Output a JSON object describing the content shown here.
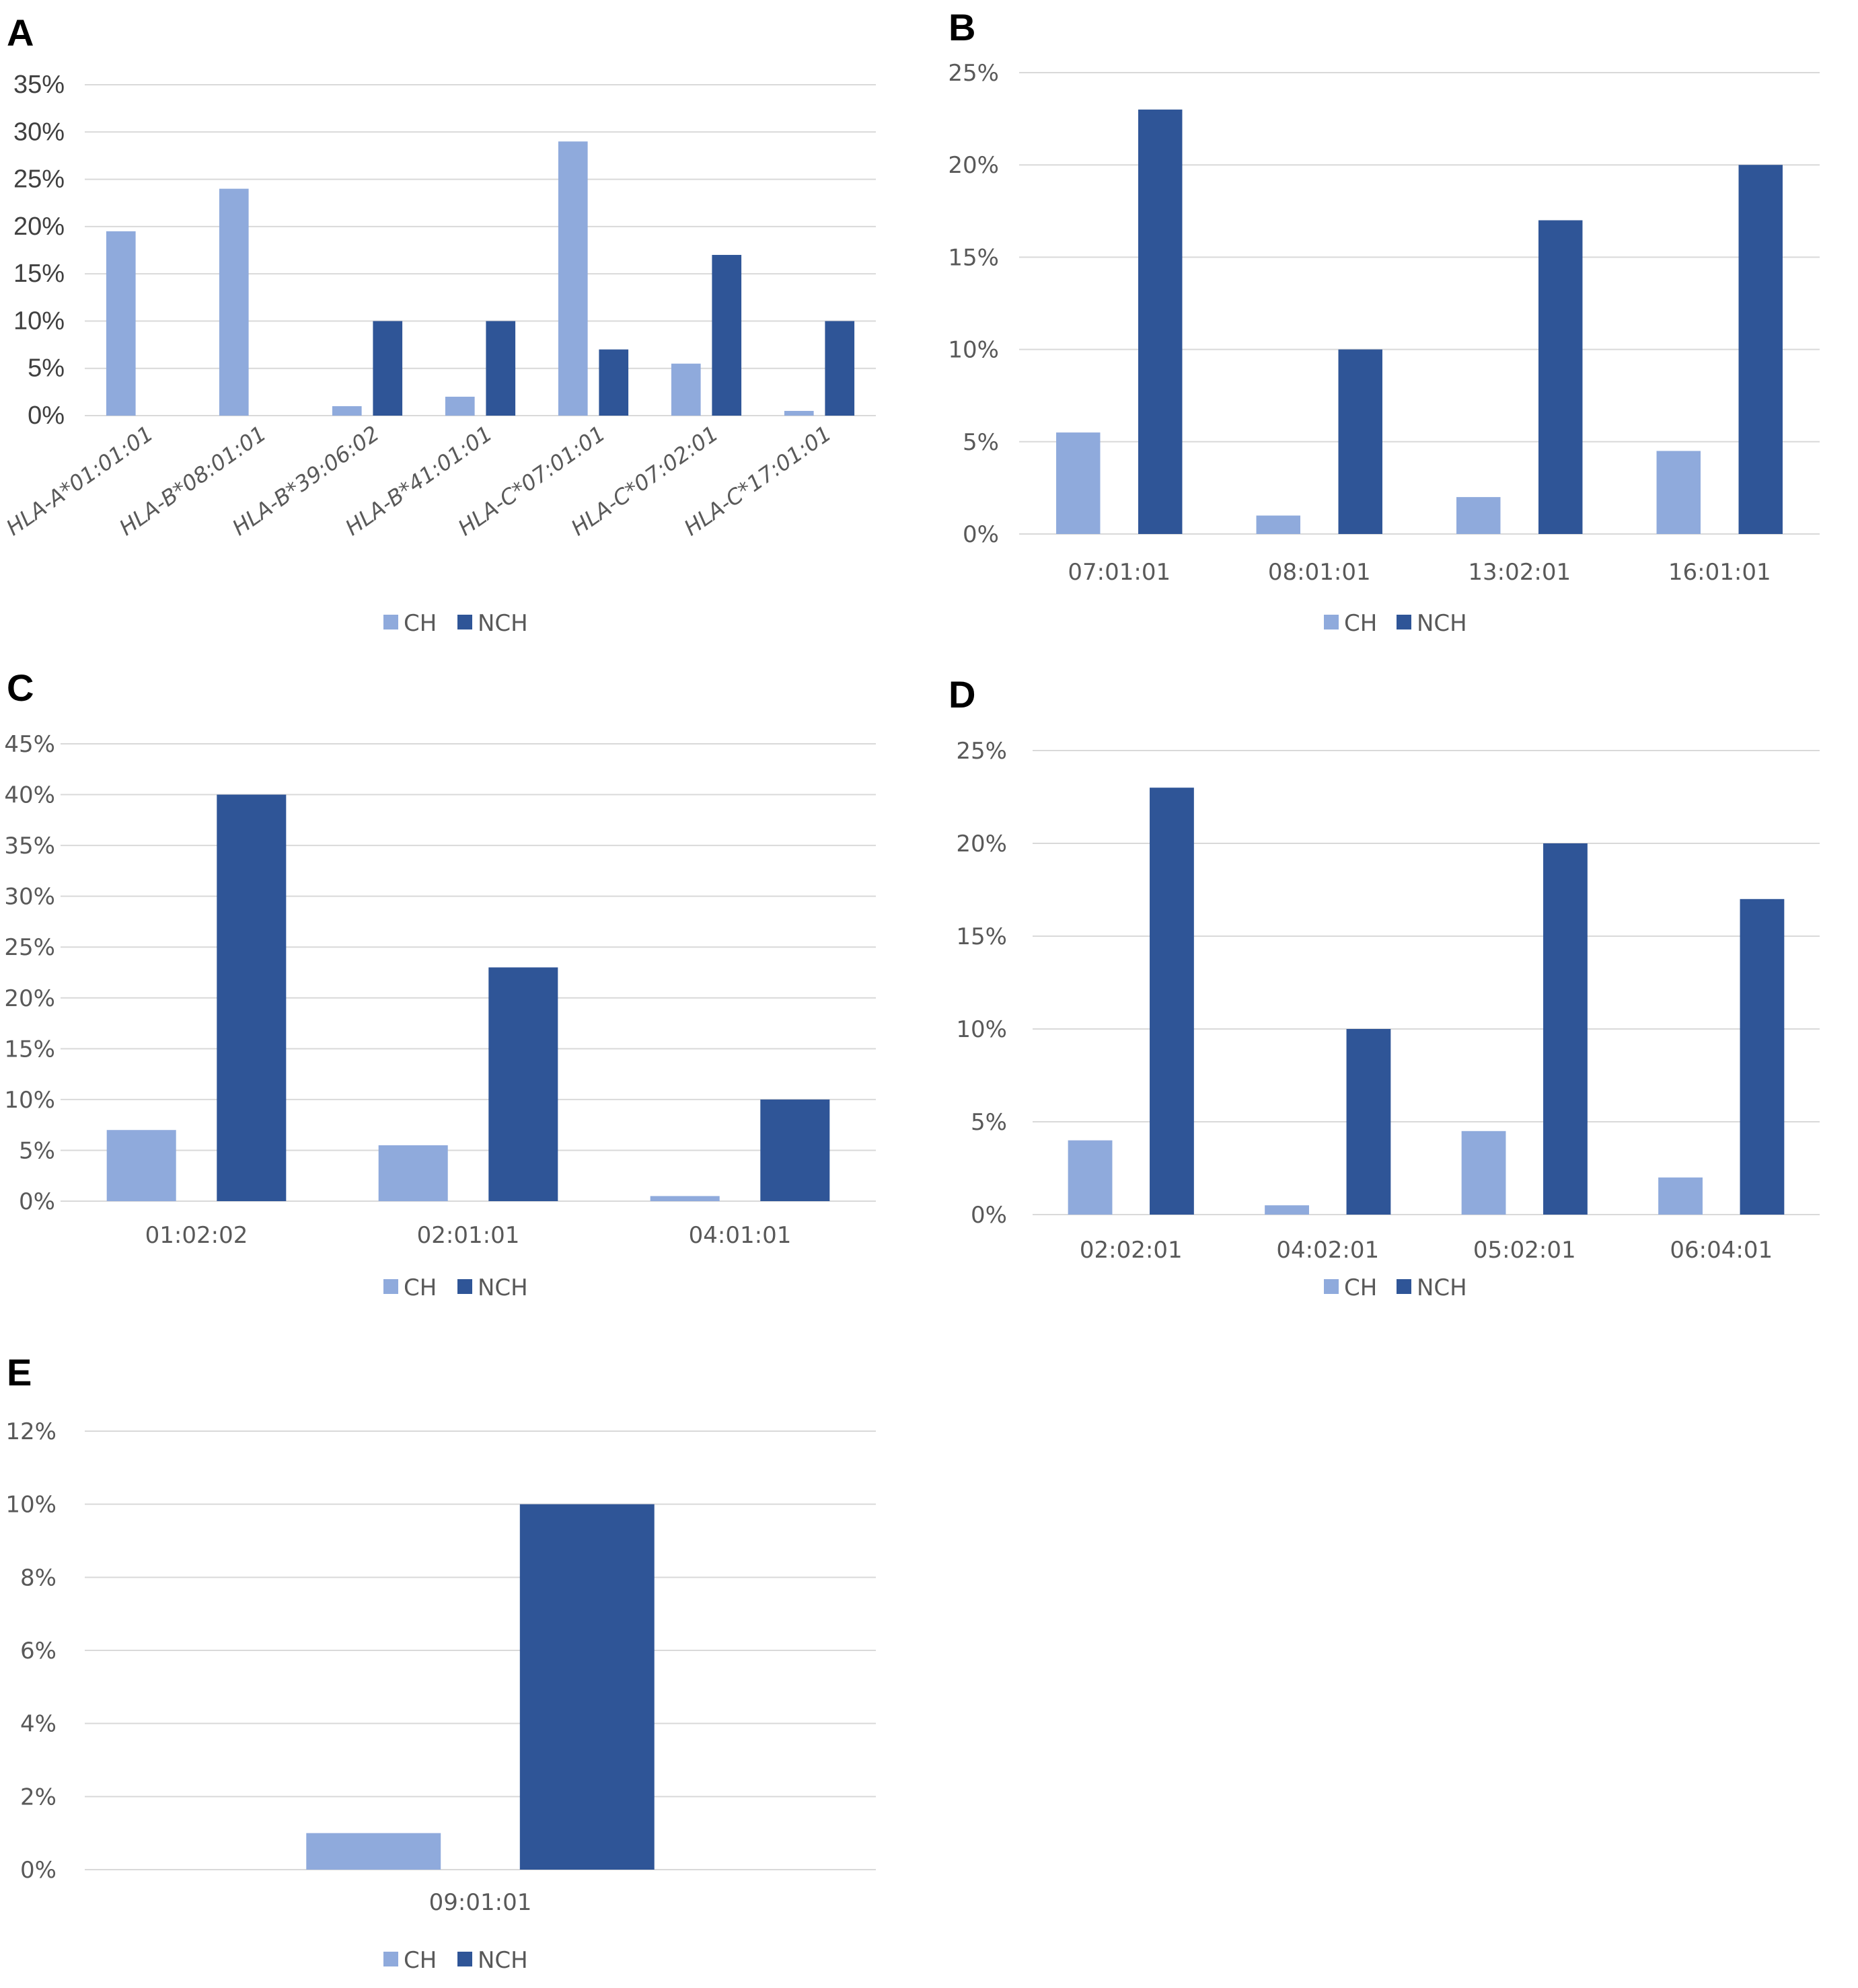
{
  "colors": {
    "CH": "#8faadc",
    "NCH": "#2f5597"
  },
  "legend": [
    "CH",
    "NCH"
  ],
  "chart_data": [
    {
      "panel": "A",
      "type": "bar",
      "categories": [
        "HLA-A*01:01:01",
        "HLA-B*08:01:01",
        "HLA-B*39:06:02",
        "HLA-B*41:01:01",
        "HLA-C*07:01:01",
        "HLA-C*07:02:01",
        "HLA-C*17:01:01"
      ],
      "series": [
        {
          "name": "CH",
          "values": [
            19.5,
            24,
            1,
            2,
            29,
            5.5,
            0.5
          ]
        },
        {
          "name": "NCH",
          "values": [
            0,
            0,
            10,
            10,
            7,
            17,
            10
          ]
        }
      ],
      "ylim": [
        0,
        35
      ],
      "yticks": [
        "0%",
        "5%",
        "10%",
        "15%",
        "20%",
        "25%",
        "30%",
        "35%"
      ],
      "legend": [
        "CH",
        "NCH"
      ]
    },
    {
      "panel": "B",
      "type": "bar",
      "categories": [
        "07:01:01",
        "08:01:01",
        "13:02:01",
        "16:01:01"
      ],
      "series": [
        {
          "name": "CH",
          "values": [
            5.5,
            1,
            2,
            4.5
          ]
        },
        {
          "name": "NCH",
          "values": [
            23,
            10,
            17,
            20
          ]
        }
      ],
      "ylim": [
        0,
        25
      ],
      "yticks": [
        "0%",
        "5%",
        "10%",
        "15%",
        "20%",
        "25%"
      ],
      "legend": [
        "CH",
        "NCH"
      ]
    },
    {
      "panel": "C",
      "type": "bar",
      "categories": [
        "01:02:02",
        "02:01:01",
        "04:01:01"
      ],
      "series": [
        {
          "name": "CH",
          "values": [
            7,
            5.5,
            0.5
          ]
        },
        {
          "name": "NCH",
          "values": [
            40,
            23,
            10
          ]
        }
      ],
      "ylim": [
        0,
        45
      ],
      "yticks": [
        "0%",
        "5%",
        "10%",
        "15%",
        "20%",
        "25%",
        "30%",
        "35%",
        "40%",
        "45%"
      ],
      "legend": [
        "CH",
        "NCH"
      ]
    },
    {
      "panel": "D",
      "type": "bar",
      "categories": [
        "02:02:01",
        "04:02:01",
        "05:02:01",
        "06:04:01"
      ],
      "series": [
        {
          "name": "CH",
          "values": [
            4,
            0.5,
            4.5,
            2
          ]
        },
        {
          "name": "NCH",
          "values": [
            23,
            10,
            20,
            17
          ]
        }
      ],
      "ylim": [
        0,
        25
      ],
      "yticks": [
        "0%",
        "5%",
        "10%",
        "15%",
        "20%",
        "25%"
      ],
      "legend": [
        "CH",
        "NCH"
      ]
    },
    {
      "panel": "E",
      "type": "bar",
      "categories": [
        "09:01:01"
      ],
      "series": [
        {
          "name": "CH",
          "values": [
            1
          ]
        },
        {
          "name": "NCH",
          "values": [
            10
          ]
        }
      ],
      "ylim": [
        0,
        12
      ],
      "yticks": [
        "0%",
        "2%",
        "4%",
        "6%",
        "8%",
        "10%",
        "12%"
      ],
      "legend": [
        "CH",
        "NCH"
      ]
    }
  ]
}
